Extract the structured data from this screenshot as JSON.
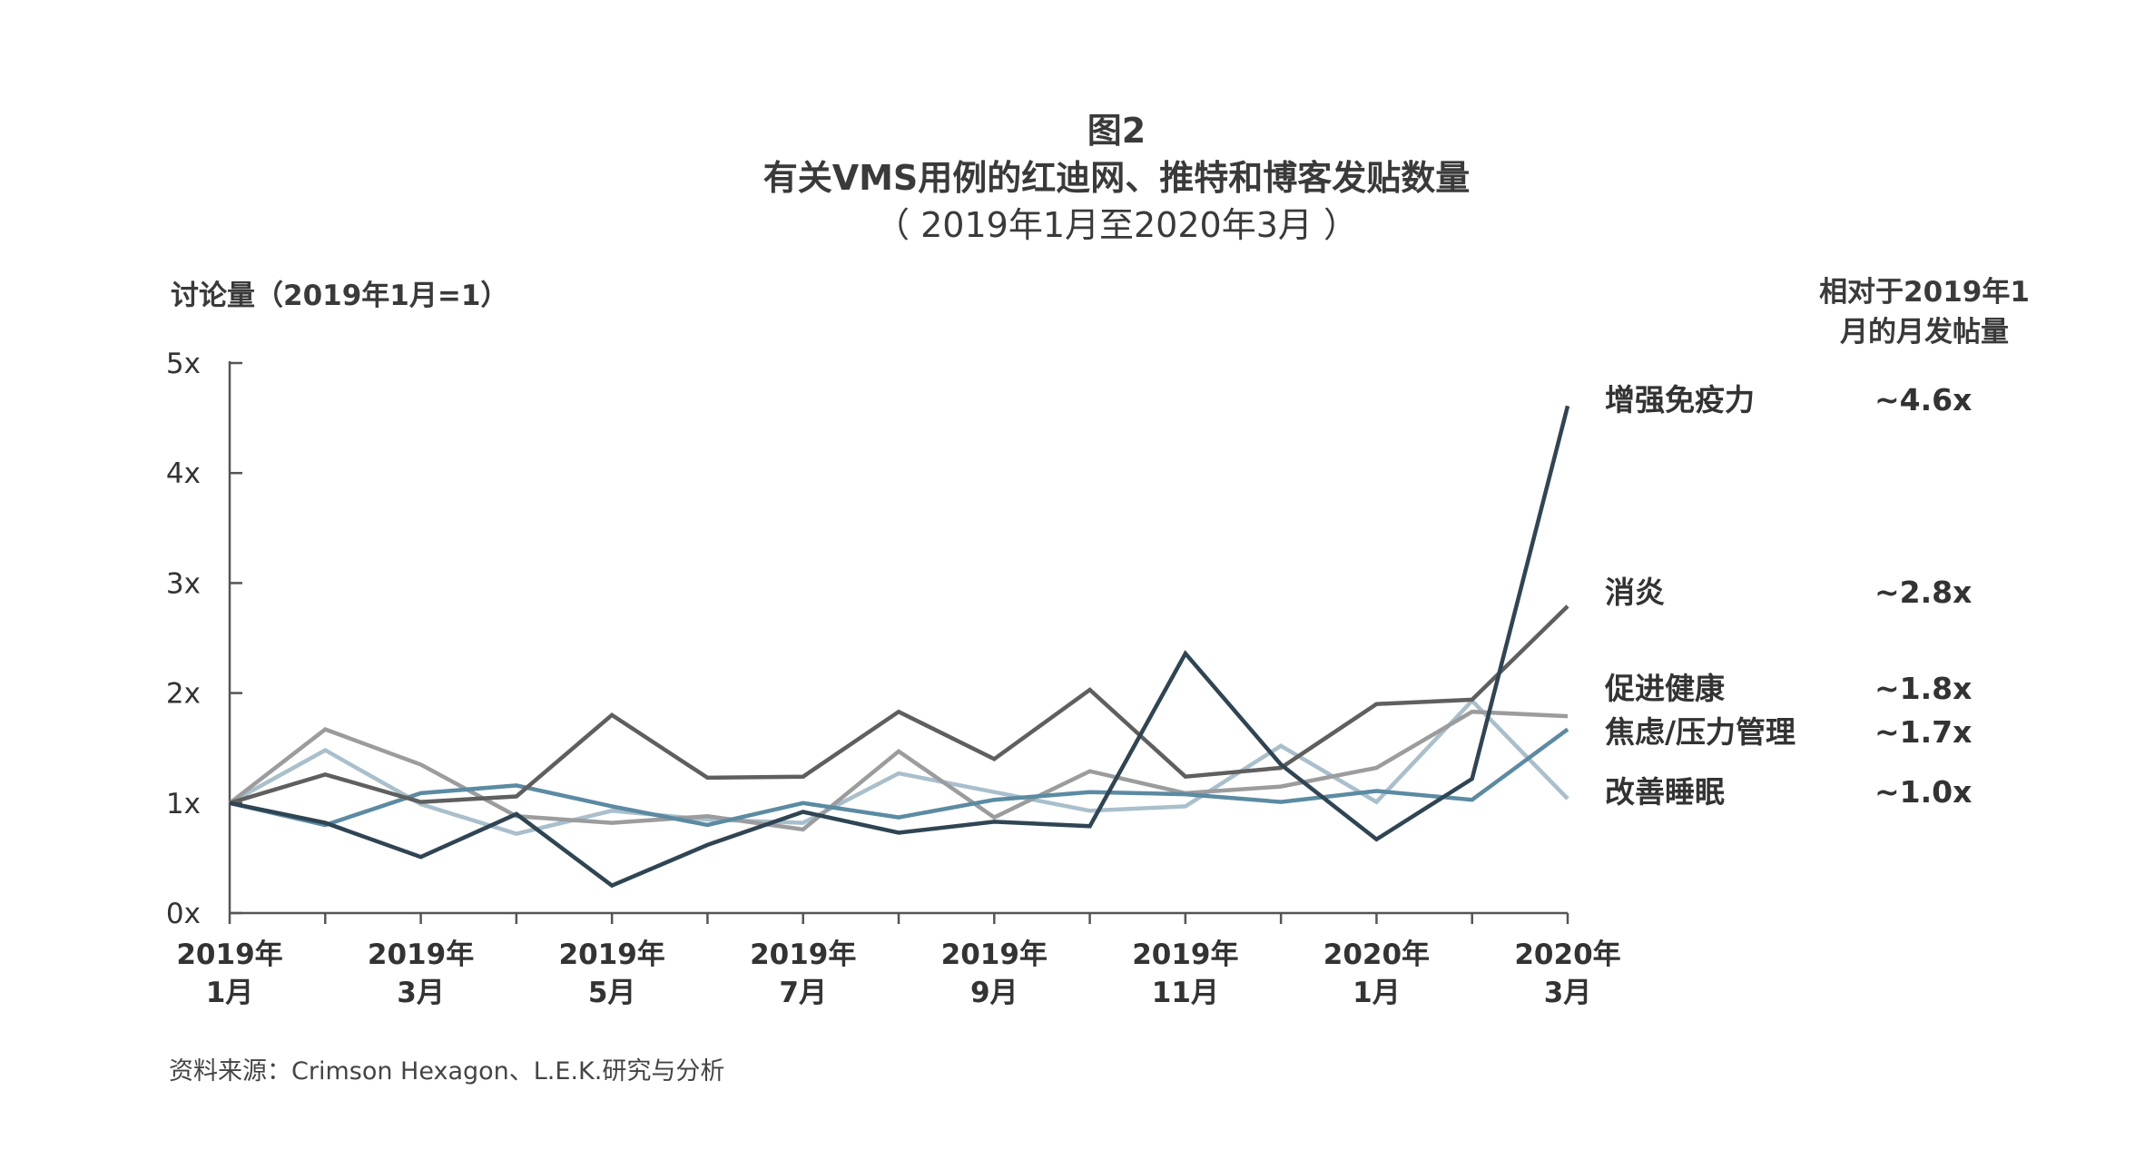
{
  "header": {
    "title": "图2",
    "subtitle": "有关VMS用例的红迪网、推特和博客发贴数量",
    "period": "（ 2019年1月至2020年3月 ）"
  },
  "source": "资料来源：Crimson Hexagon、L.E.K.研究与分析",
  "chart_data": {
    "type": "line",
    "ylabel": "讨论量（2019年1月=1）",
    "right_header": [
      "相对于2019年1",
      "月的月发帖量"
    ],
    "ylim": [
      0,
      5
    ],
    "yticks": [
      {
        "value": 0,
        "label": "0x"
      },
      {
        "value": 1,
        "label": "1x"
      },
      {
        "value": 2,
        "label": "2x"
      },
      {
        "value": 3,
        "label": "3x"
      },
      {
        "value": 4,
        "label": "4x"
      },
      {
        "value": 5,
        "label": "5x"
      }
    ],
    "x": [
      "2019-01",
      "2019-02",
      "2019-03",
      "2019-04",
      "2019-05",
      "2019-06",
      "2019-07",
      "2019-08",
      "2019-09",
      "2019-10",
      "2019-11",
      "2019-12",
      "2020-01",
      "2020-02",
      "2020-03"
    ],
    "xtick_labels": [
      {
        "index": 0,
        "line1": "2019年",
        "line2": "1月"
      },
      {
        "index": 2,
        "line1": "2019年",
        "line2": "3月"
      },
      {
        "index": 4,
        "line1": "2019年",
        "line2": "5月"
      },
      {
        "index": 6,
        "line1": "2019年",
        "line2": "7月"
      },
      {
        "index": 8,
        "line1": "2019年",
        "line2": "9月"
      },
      {
        "index": 10,
        "line1": "2019年",
        "line2": "11月"
      },
      {
        "index": 12,
        "line1": "2020年",
        "line2": "1月"
      },
      {
        "index": 14,
        "line1": "2020年",
        "line2": "3月"
      }
    ],
    "grid": false,
    "legend": "right",
    "series": [
      {
        "name": "增强免疫力",
        "ratio": "~4.6x",
        "color": "#2f4553",
        "values": [
          1.0,
          0.82,
          0.51,
          0.9,
          0.25,
          0.62,
          0.92,
          0.73,
          0.83,
          0.79,
          2.36,
          1.35,
          0.67,
          1.22,
          4.61
        ]
      },
      {
        "name": "消炎",
        "ratio": "~2.8x",
        "color": "#5f5f60",
        "values": [
          1.0,
          1.26,
          1.01,
          1.06,
          1.8,
          1.23,
          1.24,
          1.83,
          1.4,
          2.03,
          1.24,
          1.32,
          1.9,
          1.94,
          2.79
        ]
      },
      {
        "name": "促进健康",
        "ratio": "~1.8x",
        "color": "#9b9c9d",
        "values": [
          1.0,
          1.67,
          1.35,
          0.88,
          0.82,
          0.88,
          0.76,
          1.47,
          0.87,
          1.29,
          1.09,
          1.15,
          1.32,
          1.83,
          1.79
        ]
      },
      {
        "name": "焦虑/压力管理",
        "ratio": "~1.7x",
        "color": "#5b8aa3",
        "values": [
          1.0,
          0.8,
          1.09,
          1.16,
          0.97,
          0.8,
          1.0,
          0.87,
          1.03,
          1.1,
          1.08,
          1.01,
          1.11,
          1.03,
          1.67
        ]
      },
      {
        "name": "改善睡眠",
        "ratio": "~1.0x",
        "color": "#a9bfcb",
        "values": [
          1.0,
          1.48,
          0.99,
          0.72,
          0.93,
          0.85,
          0.82,
          1.27,
          1.1,
          0.93,
          0.97,
          1.52,
          1.01,
          1.93,
          1.04
        ]
      }
    ]
  }
}
